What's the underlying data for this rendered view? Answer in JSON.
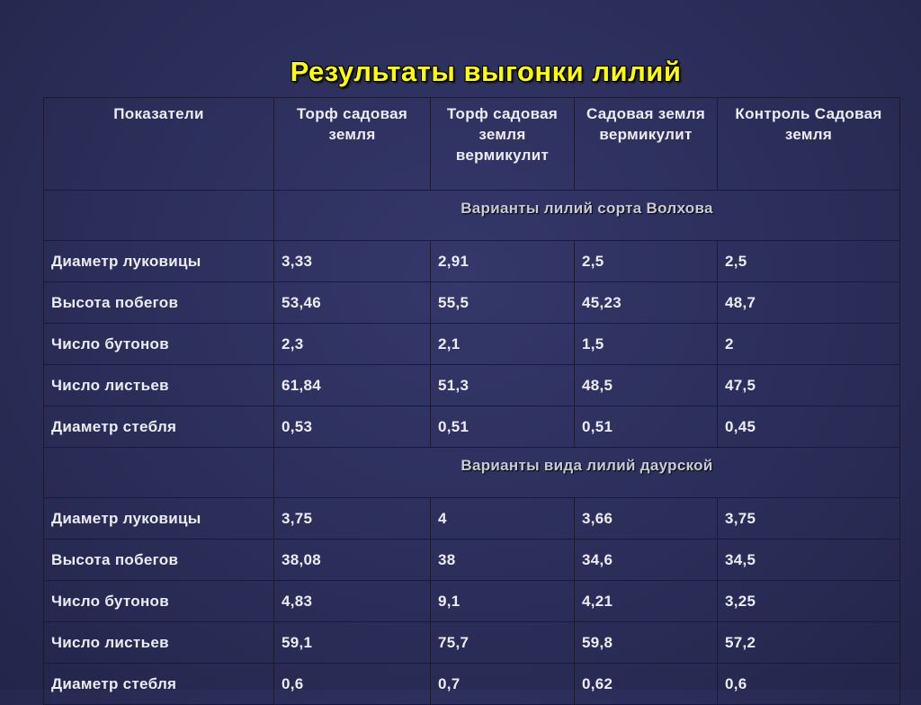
{
  "title": "Результаты выгонки  лилий",
  "table": {
    "header": [
      "Показатели",
      "Торф садовая земля",
      "Торф садовая земля вермикулит",
      "Садовая земля вермикулит",
      "Контроль Садовая земля"
    ],
    "sections": [
      {
        "label": "Варианты лилий сорта Волхова",
        "rows": [
          [
            "Диаметр луковицы",
            "3,33",
            "2,91",
            "2,5",
            "2,5"
          ],
          [
            "Высота побегов",
            "53,46",
            "55,5",
            "45,23",
            "48,7"
          ],
          [
            "Число бутонов",
            "2,3",
            "2,1",
            "1,5",
            "2"
          ],
          [
            "Число листьев",
            "61,84",
            "51,3",
            "48,5",
            "47,5"
          ],
          [
            "Диаметр стебля",
            "0,53",
            "0,51",
            "0,51",
            "0,45"
          ]
        ]
      },
      {
        "label": "Варианты вида  лилий даурской",
        "rows": [
          [
            "Диаметр луковицы",
            "3,75",
            "4",
            "3,66",
            "3,75"
          ],
          [
            "Высота побегов",
            "38,08",
            "38",
            "34,6",
            "34,5"
          ],
          [
            "Число бутонов",
            "4,83",
            "9,1",
            "4,21",
            "3,25"
          ],
          [
            "Число листьев",
            "59,1",
            "75,7",
            "59,8",
            "57,2"
          ],
          [
            "Диаметр стебля",
            "0,6",
            "0,7",
            "0,62",
            "0,6"
          ]
        ]
      }
    ]
  }
}
